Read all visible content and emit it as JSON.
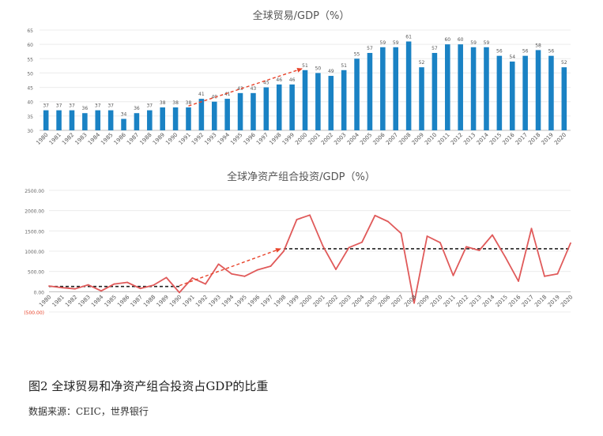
{
  "chart_data": [
    {
      "type": "bar",
      "title": "全球贸易/GDP（%）",
      "categories": [
        "1980",
        "1981",
        "1982",
        "1983",
        "1984",
        "1985",
        "1986",
        "1987",
        "1988",
        "1989",
        "1990",
        "1991",
        "1992",
        "1993",
        "1994",
        "1995",
        "1996",
        "1997",
        "1998",
        "1999",
        "2000",
        "2001",
        "2002",
        "2003",
        "2004",
        "2005",
        "2006",
        "2007",
        "2008",
        "2009",
        "2010",
        "2011",
        "2012",
        "2013",
        "2014",
        "2015",
        "2016",
        "2017",
        "2018",
        "2019",
        "2020"
      ],
      "values": [
        37,
        37,
        37,
        36,
        37,
        37,
        34,
        36,
        37,
        38,
        38,
        38,
        41,
        40,
        41,
        43,
        43,
        45,
        46,
        46,
        51,
        50,
        49,
        51,
        55,
        57,
        59,
        59,
        61,
        52,
        57,
        60,
        60,
        59,
        59,
        56,
        54,
        56,
        58,
        56,
        52
      ],
      "yticks": [
        30,
        35,
        40,
        45,
        50,
        55,
        60,
        65
      ],
      "ylim": [
        30,
        65
      ],
      "bar_color": "#1a82c4",
      "trend_color": "#e8432a",
      "trend": {
        "from": [
          "1991",
          38.5
        ],
        "to": [
          "2000",
          51.5
        ]
      },
      "grid": true
    },
    {
      "type": "line",
      "title": "全球净资产组合投资/GDP（%）",
      "categories": [
        "1980",
        "1981",
        "1982",
        "1983",
        "1984",
        "1985",
        "1986",
        "1987",
        "1988",
        "1989",
        "1990",
        "1991",
        "1992",
        "1993",
        "1994",
        "1995",
        "1996",
        "1997",
        "1998",
        "1999",
        "2000",
        "2001",
        "2002",
        "2003",
        "2004",
        "2005",
        "2006",
        "2007",
        "2008",
        "2009",
        "2010",
        "2011",
        "2012",
        "2013",
        "2014",
        "2015",
        "2016",
        "2017",
        "2018",
        "2019",
        "2020"
      ],
      "values": [
        140,
        100,
        70,
        170,
        20,
        190,
        230,
        80,
        160,
        350,
        -20,
        340,
        190,
        680,
        440,
        380,
        540,
        630,
        1000,
        1780,
        1890,
        1130,
        550,
        1090,
        1220,
        1880,
        1730,
        1440,
        -280,
        1370,
        1210,
        400,
        1110,
        1020,
        1400,
        850,
        260,
        1560,
        380,
        440,
        1200
      ],
      "yticks": [
        -500,
        0,
        500,
        1000,
        1500,
        2000,
        2500
      ],
      "ytick_labels": [
        "(500.00)",
        "0.00",
        "500.00",
        "1000.00",
        "1500.00",
        "2000.00",
        "2500.00"
      ],
      "ylim": [
        -500,
        2500
      ],
      "line_color": "#e05a5a",
      "negative_tick_color": "#e8432a",
      "trend_color": "#e8432a",
      "trend": {
        "from": [
          "1990",
          150
        ],
        "to": [
          "1998",
          1060
        ]
      },
      "avg_color": "#222222",
      "averages": [
        {
          "from": "1980",
          "to": "1990",
          "value": 130
        },
        {
          "from": "1998",
          "to": "2020",
          "value": 1060
        }
      ],
      "grid": true
    }
  ],
  "caption": "图2 全球贸易和净资产组合投资占GDP的比重",
  "source": "数据来源：CEIC，世界银行"
}
